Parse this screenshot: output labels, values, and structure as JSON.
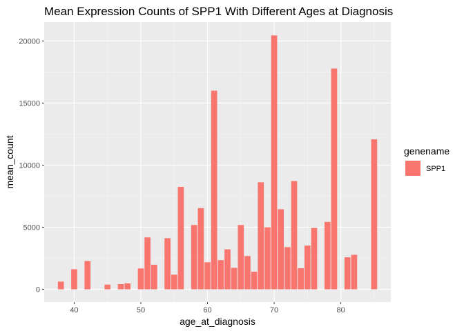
{
  "chart_data": {
    "type": "bar",
    "title": "Mean Expression Counts of SPP1 With Different Ages at Diagnosis",
    "xlabel": "age_at_diagnosis",
    "ylabel": "mean_count",
    "xlim": [
      35.5,
      87.5
    ],
    "ylim": [
      -1025,
      21525
    ],
    "x_ticks": [
      40,
      50,
      60,
      70,
      80
    ],
    "y_ticks": [
      0,
      5000,
      10000,
      15000,
      20000
    ],
    "grid": true,
    "legend": {
      "title": "genename",
      "position": "right",
      "entries": [
        "SPP1"
      ]
    },
    "series": [
      {
        "name": "SPP1",
        "color": "#F8766D",
        "x": [
          38,
          40,
          42,
          45,
          47,
          48,
          50,
          51,
          52,
          54,
          55,
          56,
          58,
          59,
          60,
          61,
          62,
          63,
          64,
          65,
          66,
          67,
          68,
          69,
          70,
          71,
          72,
          73,
          74,
          75,
          76,
          78,
          79,
          81,
          82,
          85
        ],
        "values": [
          620,
          1620,
          2280,
          380,
          420,
          480,
          1680,
          4180,
          1980,
          4120,
          1180,
          8250,
          5180,
          6540,
          2180,
          16000,
          2350,
          3220,
          1730,
          5180,
          2680,
          1420,
          8620,
          5000,
          20450,
          6450,
          3400,
          8720,
          1700,
          3520,
          4950,
          5430,
          17780,
          2580,
          2780,
          12080
        ]
      }
    ]
  }
}
